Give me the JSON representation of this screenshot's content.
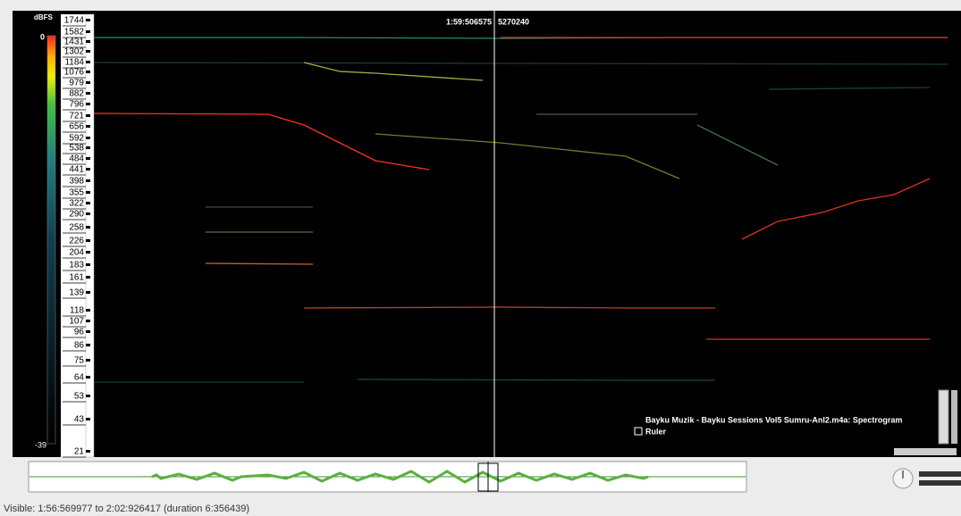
{
  "scale": {
    "unit": "dBFS",
    "top": "0",
    "bottom": "-39"
  },
  "frequencies": [
    1744,
    1582,
    1431,
    1302,
    1184,
    1076,
    979,
    882,
    796,
    721,
    656,
    592,
    538,
    484,
    441,
    398,
    355,
    322,
    290,
    258,
    226,
    204,
    183,
    161,
    139,
    118,
    107,
    96,
    86,
    75,
    64,
    53,
    43,
    21
  ],
  "cursor": {
    "time": "1:59:506575",
    "frame": "5270240"
  },
  "layer": {
    "name": "Bayku Muzik - Bayku Sessions Vol5  Sumru-Anl2.m4a: Spectrogram",
    "ruler": "Ruler"
  },
  "status": "Visible: 1:56:569977 to 2:02:926417 (duration 6:356439)"
}
